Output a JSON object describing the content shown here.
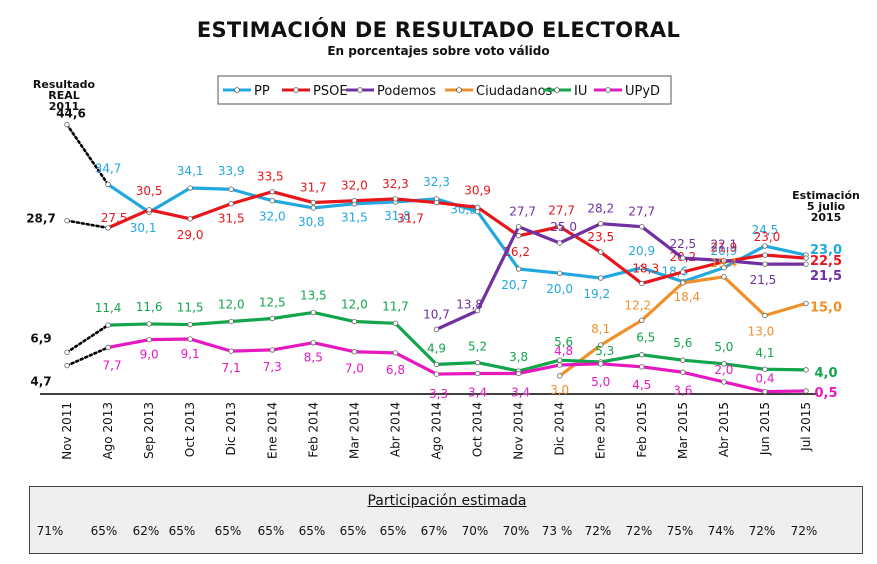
{
  "title": "ESTIMACIÓN DE RESULTADO ELECTORAL",
  "subtitle": "En porcentajes sobre voto válido",
  "left_label": [
    "Resultado",
    "REAL",
    "2011"
  ],
  "right_label": [
    "Estimación",
    "5 julio",
    "2015"
  ],
  "chart_data": {
    "type": "line",
    "categories": [
      "Nov 2011",
      "Ago 2013",
      "Sep 2013",
      "Oct 2013",
      "Dic 2013",
      "Ene 2014",
      "Feb 2014",
      "Mar 2014",
      "Abr 2014",
      "Ago 2014",
      "Oct 2014",
      "Nov 2014",
      "Dic 2014",
      "Ene 2015",
      "Feb 2015",
      "Mar 2015",
      "Abr 2015",
      "Jun 2015",
      "Jul 2015"
    ],
    "ylim": [
      0,
      50
    ],
    "legend_position": "top",
    "grid": false,
    "series": [
      {
        "name": "PP",
        "color": "#22a8e0",
        "values": [
          44.6,
          34.7,
          30.1,
          34.1,
          33.9,
          32.0,
          30.8,
          31.5,
          31.8,
          32.3,
          30.2,
          20.7,
          20.0,
          19.2,
          20.9,
          18.6,
          20.9,
          24.5,
          23.0
        ],
        "labels": [
          "44,6",
          "34,7",
          "30,1",
          "34,1",
          "33,9",
          "32,0",
          "30,8",
          "31,5",
          "31,8",
          "32,3",
          "30,2",
          "20,7",
          "20,0",
          "19,2",
          "20,9",
          "18,6",
          "20,9",
          "24,5",
          "23,0"
        ]
      },
      {
        "name": "PSOE",
        "color": "#e8161b",
        "values": [
          28.7,
          27.5,
          30.5,
          29.0,
          31.5,
          33.5,
          31.7,
          32.0,
          32.3,
          31.7,
          30.9,
          26.2,
          27.7,
          23.5,
          18.3,
          20.2,
          21.9,
          23.0,
          22.5
        ],
        "labels": [
          "28,7",
          "27,5",
          "30,5",
          "29,0",
          "31,5",
          "33,5",
          "31,7",
          "32,0",
          "32,3",
          "31,7",
          "30,9",
          "26,2",
          "27,7",
          "23,5",
          "18,3",
          "20,2",
          "21,9",
          "23,0",
          "22,5"
        ]
      },
      {
        "name": "Podemos",
        "color": "#7030a0",
        "values": [
          null,
          null,
          null,
          null,
          null,
          null,
          null,
          null,
          null,
          10.7,
          13.8,
          27.7,
          25.0,
          28.2,
          27.7,
          22.5,
          22.1,
          21.5,
          21.5
        ],
        "labels": [
          null,
          null,
          null,
          null,
          null,
          null,
          null,
          null,
          null,
          "10,7",
          "13,8",
          "27,7",
          "25,0",
          "28,2",
          "27,7",
          "22,5",
          "22,1",
          "21,5",
          "21,5"
        ]
      },
      {
        "name": "Ciudadanos",
        "color": "#f0902a",
        "values": [
          null,
          null,
          null,
          null,
          null,
          null,
          null,
          null,
          null,
          null,
          null,
          null,
          3.0,
          8.1,
          12.2,
          18.4,
          19.4,
          13.0,
          15.0
        ],
        "labels": [
          null,
          null,
          null,
          null,
          null,
          null,
          null,
          null,
          null,
          null,
          null,
          null,
          "3,0",
          "8,1",
          "12,2",
          "18,4",
          "19,4",
          "13,0",
          "15,0"
        ]
      },
      {
        "name": "IU",
        "color": "#12a54b",
        "values": [
          6.9,
          11.4,
          11.6,
          11.5,
          12.0,
          12.5,
          13.5,
          12.0,
          11.7,
          4.9,
          5.2,
          3.8,
          5.6,
          5.3,
          6.5,
          5.6,
          5.0,
          4.1,
          4.0
        ],
        "labels": [
          "6,9",
          "11,4",
          "11,6",
          "11,5",
          "12,0",
          "12,5",
          "13,5",
          "12,0",
          "11,7",
          "4,9",
          "5,2",
          "3,8",
          "5,6",
          "5,3",
          "6,5",
          "5,6",
          "5,0",
          "4,1",
          "4,0"
        ]
      },
      {
        "name": "UPyD",
        "color": "#e619c0",
        "values": [
          4.7,
          7.7,
          9.0,
          9.1,
          7.1,
          7.3,
          8.5,
          7.0,
          6.8,
          3.3,
          3.4,
          3.4,
          4.8,
          5.0,
          4.5,
          3.6,
          2.0,
          0.4,
          0.5
        ],
        "labels": [
          "4,7",
          "7,7",
          "9,0",
          "9,1",
          "7,1",
          "7,3",
          "8,5",
          "7,0",
          "6,8",
          "3,3",
          "3,4",
          "3,4",
          "4,8",
          "5,0",
          "4,5",
          "3,6",
          "2,0",
          "0,4",
          "0,5"
        ]
      }
    ]
  },
  "participation": {
    "title": "Participación estimada",
    "values": [
      "71%",
      "65%",
      "62%",
      "65%",
      "65%",
      "65%",
      "65%",
      "65%",
      "65%",
      "67%",
      "70%",
      "70%",
      "73 %",
      "72%",
      "72%",
      "75%",
      "74%",
      "72%",
      "72%"
    ]
  }
}
